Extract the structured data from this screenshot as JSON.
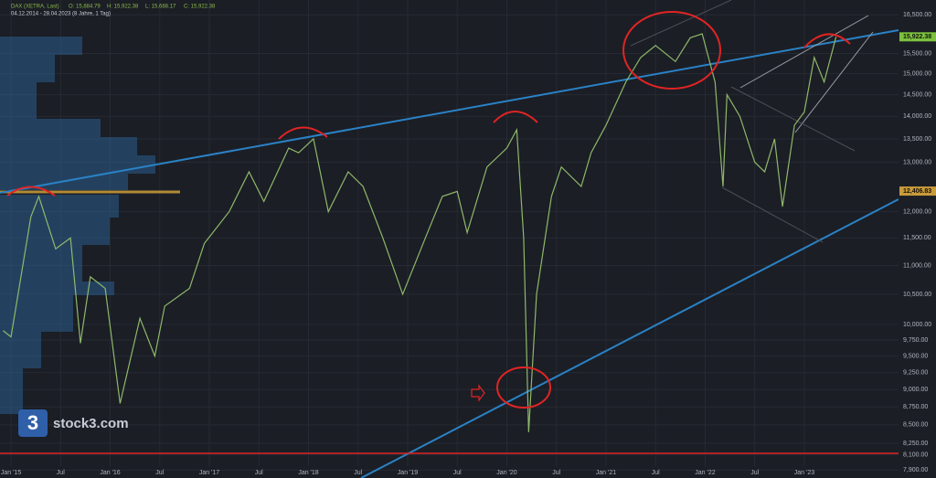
{
  "chart_data": {
    "type": "line",
    "header": {
      "symbol": "DAX (XETRA, Last)",
      "ohlc": [
        "O: 15,884.79",
        "H: 15,922.38",
        "L: 15,688.17",
        "C: 15,922.38"
      ],
      "range": "04.12.2014 - 28.04.2023 (8 Jahre, 1 Tag)"
    },
    "watermark": "stock3.com",
    "logo_mark": "3",
    "color": "#8fb86a",
    "log_scale": true,
    "grid": true,
    "x": [
      2014.92,
      2015.0,
      2015.2,
      2015.28,
      2015.45,
      2015.6,
      2015.7,
      2015.8,
      2015.95,
      2016.1,
      2016.3,
      2016.45,
      2016.55,
      2016.8,
      2016.95,
      2017.2,
      2017.4,
      2017.55,
      2017.8,
      2017.9,
      2018.05,
      2018.2,
      2018.4,
      2018.55,
      2018.75,
      2018.95,
      2019.2,
      2019.35,
      2019.5,
      2019.6,
      2019.8,
      2020.0,
      2020.1,
      2020.17,
      2020.22,
      2020.3,
      2020.45,
      2020.55,
      2020.75,
      2020.85,
      2021.0,
      2021.2,
      2021.35,
      2021.5,
      2021.7,
      2021.85,
      2021.97,
      2022.1,
      2022.18,
      2022.22,
      2022.35,
      2022.5,
      2022.6,
      2022.7,
      2022.78,
      2022.9,
      2023.0,
      2023.1,
      2023.2,
      2023.32
    ],
    "values": [
      9900,
      9800,
      11900,
      12300,
      11300,
      11500,
      9700,
      10800,
      10600,
      8800,
      10100,
      9500,
      10300,
      10600,
      11400,
      12000,
      12800,
      12200,
      13300,
      13200,
      13500,
      12000,
      12800,
      12500,
      11500,
      10500,
      11600,
      12300,
      12400,
      11600,
      12900,
      13300,
      13700,
      11500,
      8400,
      10500,
      12300,
      12900,
      12500,
      13200,
      13800,
      14800,
      15400,
      15700,
      15300,
      15900,
      16000,
      14800,
      12500,
      14500,
      14000,
      13000,
      12800,
      13500,
      12100,
      13800,
      14100,
      15400,
      14800,
      15922.38
    ],
    "last_price": {
      "value": 15922.38,
      "label": "15,922.38"
    },
    "poc_price": {
      "value": 12406.83,
      "label": "12,406.83"
    },
    "xlim": [
      2014.889,
      2023.95
    ],
    "xticks": [
      {
        "value": 2015,
        "label": "Jan '15"
      },
      {
        "value": 2015.5,
        "label": "Jul"
      },
      {
        "value": 2016,
        "label": "Jan '16"
      },
      {
        "value": 2016.5,
        "label": "Jul"
      },
      {
        "value": 2017,
        "label": "Jan '17"
      },
      {
        "value": 2017.5,
        "label": "Jul"
      },
      {
        "value": 2018,
        "label": "Jan '18"
      },
      {
        "value": 2018.5,
        "label": "Jul"
      },
      {
        "value": 2019,
        "label": "Jan '19"
      },
      {
        "value": 2019.5,
        "label": "Jul"
      },
      {
        "value": 2020,
        "label": "Jan '20"
      },
      {
        "value": 2020.5,
        "label": "Jul"
      },
      {
        "value": 2021,
        "label": "Jan '21"
      },
      {
        "value": 2021.5,
        "label": "Jul"
      },
      {
        "value": 2022,
        "label": "Jan '22"
      },
      {
        "value": 2022.5,
        "label": "Jul"
      },
      {
        "value": 2023,
        "label": "Jan '23"
      }
    ],
    "ylim": [
      16900,
      7800
    ],
    "yticks": [
      {
        "value": 16500,
        "label": "16,500.00"
      },
      {
        "value": 15500,
        "label": "15,500.00"
      },
      {
        "value": 15000,
        "label": "15,000.00"
      },
      {
        "value": 14500,
        "label": "14,500.00"
      },
      {
        "value": 14000,
        "label": "14,000.00"
      },
      {
        "value": 13500,
        "label": "13,500.00"
      },
      {
        "value": 13000,
        "label": "13,000.00"
      },
      {
        "value": 12000,
        "label": "12,000.00"
      },
      {
        "value": 11500,
        "label": "11,500.00"
      },
      {
        "value": 11000,
        "label": "11,000.00"
      },
      {
        "value": 10500,
        "label": "10,500.00"
      },
      {
        "value": 10000,
        "label": "10,000.00"
      },
      {
        "value": 9750,
        "label": "9,750.00"
      },
      {
        "value": 9500,
        "label": "9,500.00"
      },
      {
        "value": 9250,
        "label": "9,250.00"
      },
      {
        "value": 9000,
        "label": "9,000.00"
      },
      {
        "value": 8750,
        "label": "8,750.00"
      },
      {
        "value": 8500,
        "label": "8,500.00"
      },
      {
        "value": 8250,
        "label": "8,250.00"
      },
      {
        "value": 8100,
        "label": "8,100.00"
      },
      {
        "value": 7900,
        "label": "7,900.00"
      }
    ]
  }
}
